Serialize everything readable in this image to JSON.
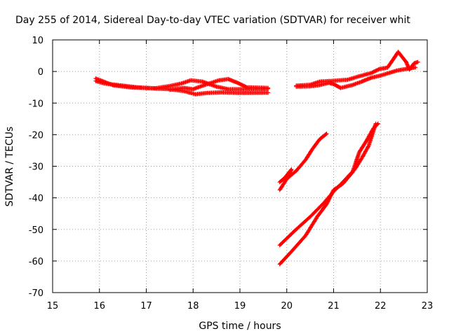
{
  "chart_data": {
    "type": "scatter",
    "title": "Day 255 of 2014, Sidereal Day-to-day VTEC variation (SDTVAR) for receiver whit",
    "xlabel": "GPS time / hours",
    "ylabel": "SDTVAR / TECUs",
    "xlim": [
      15,
      23
    ],
    "ylim": [
      -70,
      10
    ],
    "x_ticks": [
      15,
      16,
      17,
      18,
      19,
      20,
      21,
      22,
      23
    ],
    "y_ticks": [
      10,
      0,
      -10,
      -20,
      -30,
      -40,
      -50,
      -60,
      -70
    ],
    "grid": true,
    "marker": "plus",
    "series": [
      {
        "color": "#ff0000",
        "segments": [
          [
            [
              15.92,
              -3
            ],
            [
              16.1,
              -3.8
            ],
            [
              16.4,
              -4.3
            ],
            [
              16.8,
              -5
            ],
            [
              17.2,
              -5.4
            ],
            [
              17.5,
              -5.6
            ],
            [
              17.8,
              -6.2
            ],
            [
              18.05,
              -7.2
            ],
            [
              18.3,
              -6.8
            ],
            [
              18.6,
              -6.6
            ],
            [
              19.0,
              -6.8
            ],
            [
              19.6,
              -6.7
            ]
          ],
          [
            [
              15.92,
              -2.2
            ],
            [
              16.3,
              -4.4
            ],
            [
              16.7,
              -5.1
            ],
            [
              17.2,
              -5.3
            ],
            [
              17.5,
              -4.6
            ],
            [
              17.75,
              -3.8
            ],
            [
              17.95,
              -2.8
            ],
            [
              18.2,
              -3.2
            ],
            [
              18.5,
              -4.8
            ],
            [
              18.75,
              -5.6
            ],
            [
              19.2,
              -5.6
            ],
            [
              19.6,
              -5.5
            ]
          ],
          [
            [
              17.5,
              -5.8
            ],
            [
              17.8,
              -5.2
            ],
            [
              18.0,
              -5.6
            ],
            [
              18.3,
              -4.0
            ],
            [
              18.55,
              -2.8
            ],
            [
              18.75,
              -2.4
            ],
            [
              18.95,
              -3.6
            ],
            [
              19.15,
              -5.0
            ],
            [
              19.6,
              -5.2
            ]
          ],
          [
            [
              20.2,
              -4.8
            ],
            [
              20.5,
              -4.7
            ],
            [
              20.7,
              -4.3
            ],
            [
              20.9,
              -3.6
            ],
            [
              21.0,
              -4.0
            ],
            [
              21.15,
              -5.2
            ],
            [
              21.4,
              -4.3
            ],
            [
              21.6,
              -3.2
            ],
            [
              21.8,
              -2.0
            ],
            [
              22.0,
              -1.3
            ],
            [
              22.2,
              -0.4
            ],
            [
              22.35,
              0.3
            ],
            [
              22.55,
              0.8
            ],
            [
              22.75,
              1.3
            ]
          ],
          [
            [
              20.2,
              -4.5
            ],
            [
              20.5,
              -4.2
            ],
            [
              20.7,
              -3.2
            ],
            [
              20.95,
              -3.0
            ],
            [
              21.3,
              -2.6
            ],
            [
              21.55,
              -1.5
            ],
            [
              21.8,
              -0.5
            ],
            [
              21.98,
              0.8
            ],
            [
              22.15,
              1.2
            ],
            [
              22.28,
              4.0
            ],
            [
              22.38,
              6.2
            ],
            [
              22.55,
              3.0
            ],
            [
              22.62,
              0.6
            ],
            [
              22.72,
              2.6
            ],
            [
              22.8,
              3.0
            ]
          ],
          [
            [
              19.85,
              -37.5
            ],
            [
              20.0,
              -34.0
            ],
            [
              20.2,
              -31.5
            ],
            [
              20.4,
              -28.0
            ],
            [
              20.55,
              -24.5
            ],
            [
              20.7,
              -21.5
            ],
            [
              20.85,
              -19.7
            ]
          ],
          [
            [
              19.85,
              -35.0
            ],
            [
              20.05,
              -32.5
            ],
            [
              20.1,
              -31.0
            ],
            [
              19.95,
              -33.8
            ]
          ],
          [
            [
              19.85,
              -55.0
            ],
            [
              20.2,
              -50.0
            ],
            [
              20.5,
              -46.0
            ],
            [
              20.8,
              -41.5
            ],
            [
              21.0,
              -38.0
            ],
            [
              21.2,
              -35.0
            ],
            [
              21.45,
              -31.0
            ],
            [
              21.6,
              -27.5
            ],
            [
              21.75,
              -23.5
            ],
            [
              21.9,
              -16.5
            ]
          ],
          [
            [
              19.85,
              -61.0
            ],
            [
              20.1,
              -57.0
            ],
            [
              20.4,
              -52.0
            ],
            [
              20.65,
              -46.0
            ],
            [
              20.85,
              -42.0
            ],
            [
              21.0,
              -37.5
            ],
            [
              21.2,
              -35.5
            ],
            [
              21.4,
              -32.0
            ],
            [
              21.55,
              -25.5
            ],
            [
              21.7,
              -22.0
            ],
            [
              21.85,
              -18.0
            ],
            [
              21.95,
              -16.5
            ]
          ]
        ]
      }
    ]
  }
}
